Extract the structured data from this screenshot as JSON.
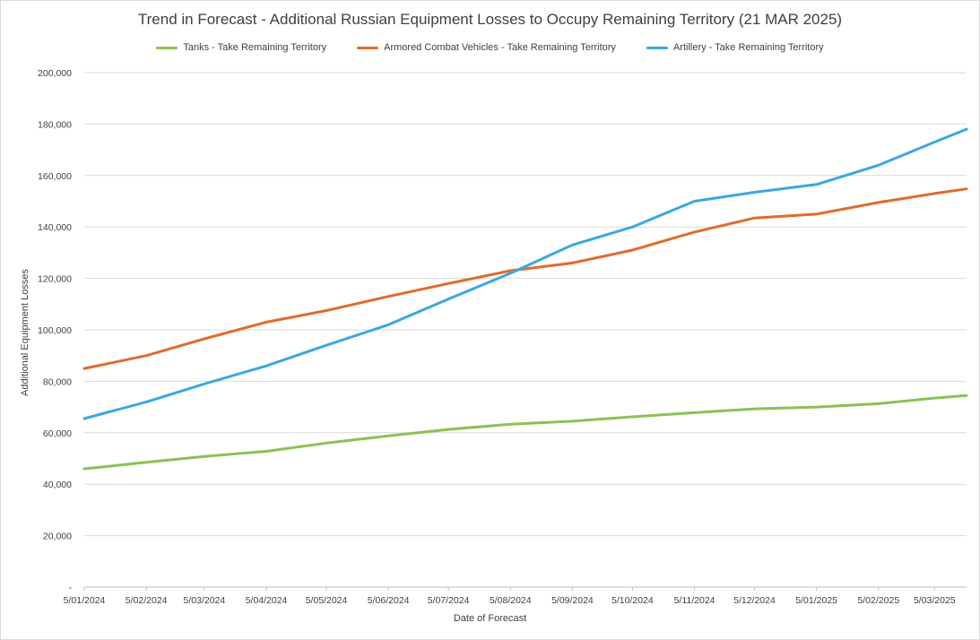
{
  "chart_data": {
    "type": "line",
    "title": "Trend in Forecast - Additional Russian Equipment Losses to Occupy Remaining Territory (21 MAR 2025)",
    "xlabel": "Date of Forecast",
    "ylabel": "Additional Equipment Losses",
    "ylim": [
      0,
      200000
    ],
    "y_ticks": [
      "-",
      "20,000",
      "40,000",
      "60,000",
      "80,000",
      "100,000",
      "120,000",
      "140,000",
      "160,000",
      "180,000",
      "200,000"
    ],
    "x_tick_labels": [
      "5/01/2024",
      "5/02/2024",
      "5/03/2024",
      "5/04/2024",
      "5/05/2024",
      "5/06/2024",
      "5/07/2024",
      "5/08/2024",
      "5/09/2024",
      "5/10/2024",
      "5/11/2024",
      "5/12/2024",
      "5/01/2025",
      "5/02/2025",
      "5/03/2025"
    ],
    "grid": "horizontal",
    "legend_position": "top",
    "series": [
      {
        "name": "Tanks - Take Remaining Territory",
        "color": "#8cc152",
        "x": [
          "5/01/2024",
          "5/02/2024",
          "5/03/2024",
          "5/04/2024",
          "5/05/2024",
          "5/06/2024",
          "5/07/2024",
          "5/08/2024",
          "5/09/2024",
          "5/10/2024",
          "5/11/2024",
          "5/12/2024",
          "5/01/2025",
          "5/02/2025",
          "5/03/2025",
          "21/03/2025"
        ],
        "values": [
          46000,
          48500,
          50800,
          52800,
          56000,
          58800,
          61300,
          63300,
          64500,
          66200,
          67800,
          69300,
          70000,
          71300,
          73500,
          74500
        ]
      },
      {
        "name": "Armored Combat Vehicles - Take Remaining Territory",
        "color": "#e06b2d",
        "x": [
          "5/01/2024",
          "5/02/2024",
          "5/03/2024",
          "5/04/2024",
          "5/05/2024",
          "5/06/2024",
          "5/07/2024",
          "5/08/2024",
          "5/09/2024",
          "5/10/2024",
          "5/11/2024",
          "5/12/2024",
          "5/01/2025",
          "5/02/2025",
          "5/03/2025",
          "21/03/2025"
        ],
        "values": [
          85000,
          90000,
          96500,
          103000,
          107500,
          113000,
          118000,
          123000,
          126000,
          131000,
          138000,
          143500,
          145000,
          149500,
          153000,
          154800
        ]
      },
      {
        "name": "Artillery - Take Remaining Territory",
        "color": "#3aa8e0",
        "x": [
          "5/01/2024",
          "5/02/2024",
          "5/03/2024",
          "5/04/2024",
          "5/05/2024",
          "5/06/2024",
          "5/07/2024",
          "5/08/2024",
          "5/09/2024",
          "5/10/2024",
          "5/11/2024",
          "5/12/2024",
          "5/01/2025",
          "5/02/2025",
          "5/03/2025",
          "21/03/2025"
        ],
        "values": [
          65500,
          72000,
          79000,
          86000,
          94000,
          102000,
          112000,
          122000,
          133000,
          140000,
          150000,
          153500,
          156500,
          164000,
          173000,
          178000
        ]
      }
    ]
  }
}
